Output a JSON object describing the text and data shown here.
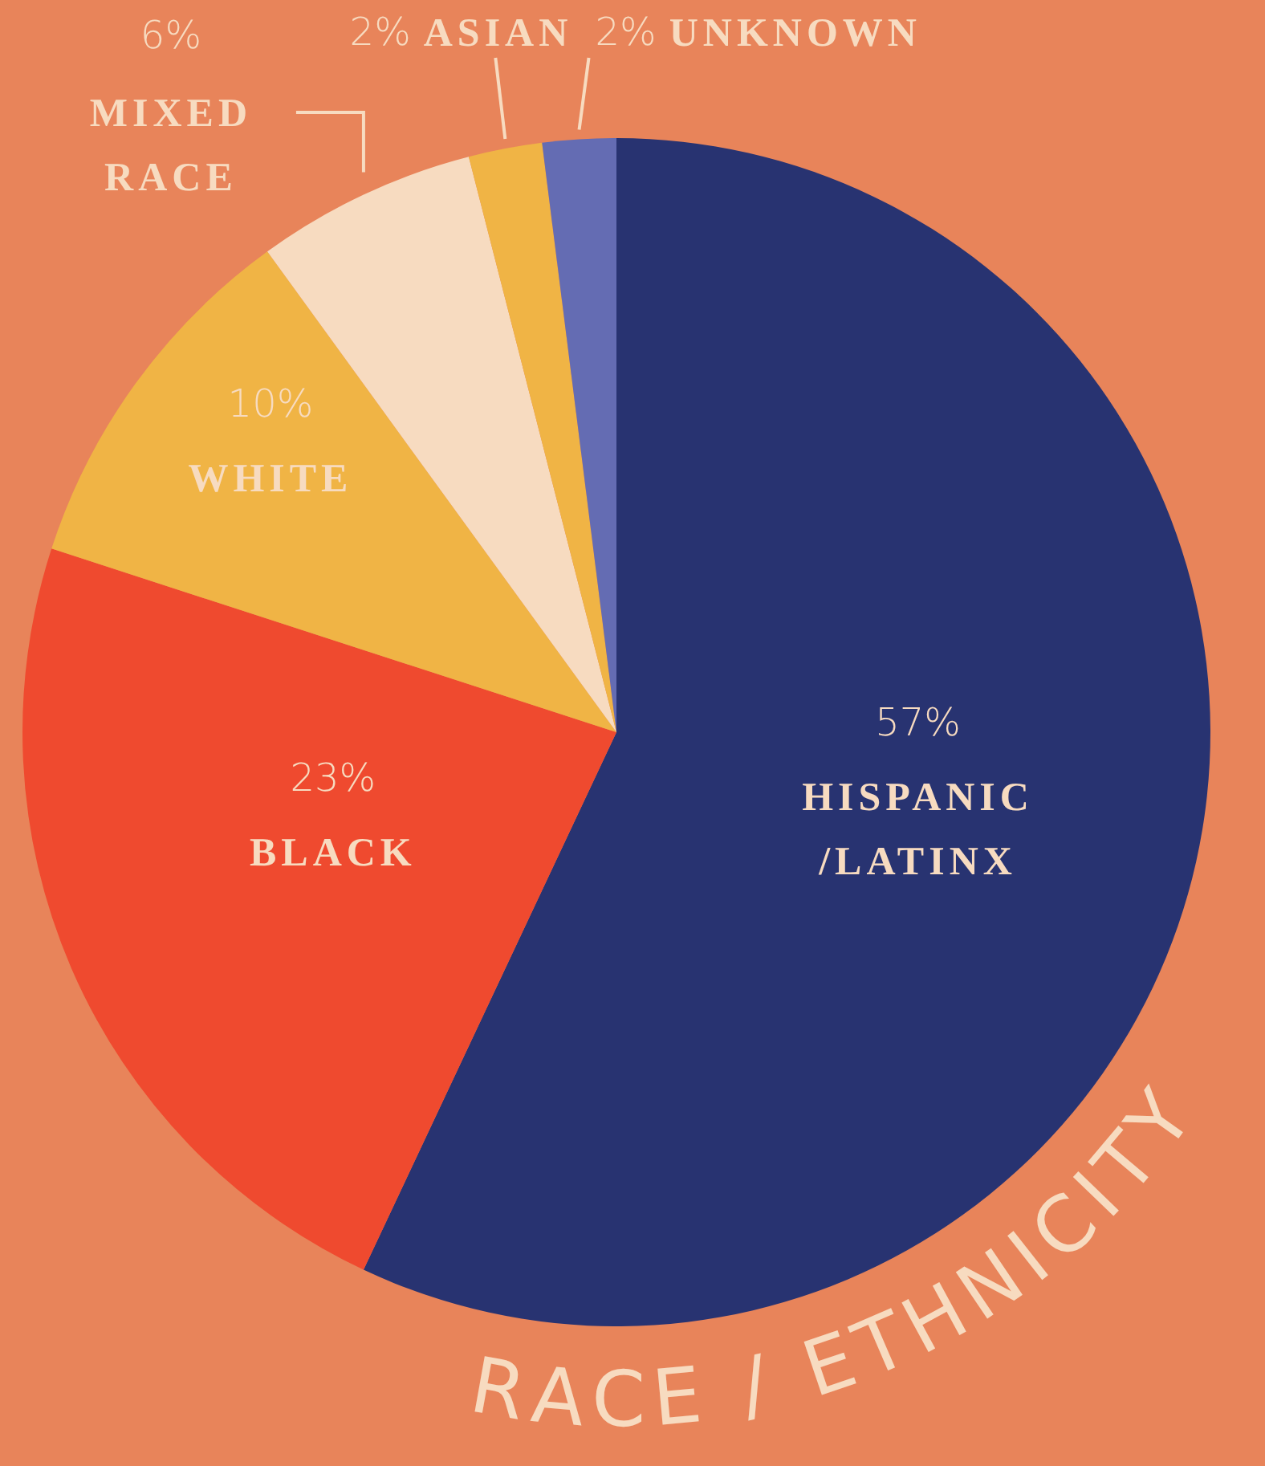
{
  "chart_data": {
    "type": "pie",
    "title": "RACE / ETHNICITY",
    "categories": [
      "HISPANIC /LATINX",
      "BLACK",
      "WHITE",
      "MIXED RACE",
      "ASIAN",
      "UNKNOWN"
    ],
    "values": [
      57,
      23,
      10,
      6,
      2,
      2
    ],
    "colors": [
      "#283371",
      "#ef4a2f",
      "#f0b445",
      "#f7dbc0",
      "#f0b445",
      "#646cb3"
    ],
    "value_labels": [
      "57%",
      "23%",
      "10%",
      "6%",
      "2%",
      "2%"
    ],
    "legend": false
  }
}
